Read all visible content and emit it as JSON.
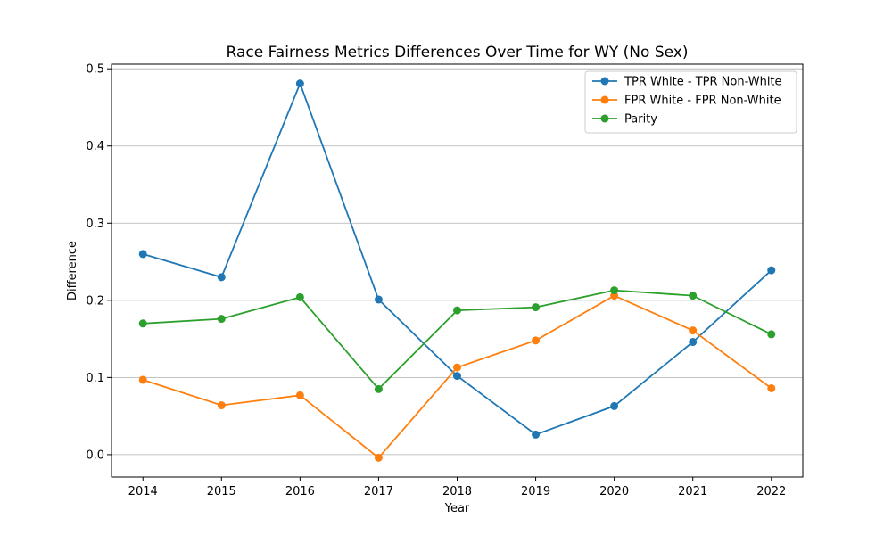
{
  "chart_data": {
    "type": "line",
    "title": "Race Fairness Metrics Differences Over Time for WY (No Sex)",
    "xlabel": "Year",
    "ylabel": "Difference",
    "x": [
      2014,
      2015,
      2016,
      2017,
      2018,
      2019,
      2020,
      2021,
      2022
    ],
    "xlim": [
      2013.6,
      2022.4
    ],
    "ylim": [
      -0.029,
      0.506
    ],
    "yticks": [
      0.0,
      0.1,
      0.2,
      0.3,
      0.4,
      0.5
    ],
    "ytick_labels": [
      "0.0",
      "0.1",
      "0.2",
      "0.3",
      "0.4",
      "0.5"
    ],
    "grid": "horizontal",
    "legend_position": "top-right",
    "series": [
      {
        "name": "TPR White - TPR Non-White",
        "color": "#1f77b4",
        "values": [
          0.26,
          0.23,
          0.481,
          0.201,
          0.102,
          0.026,
          0.063,
          0.146,
          0.239
        ]
      },
      {
        "name": "FPR White - FPR Non-White",
        "color": "#ff7f0e",
        "values": [
          0.097,
          0.064,
          0.077,
          -0.004,
          0.113,
          0.148,
          0.206,
          0.161,
          0.086
        ]
      },
      {
        "name": "Parity",
        "color": "#2ca02c",
        "values": [
          0.17,
          0.176,
          0.204,
          0.085,
          0.187,
          0.191,
          0.213,
          0.206,
          0.156
        ]
      }
    ]
  }
}
